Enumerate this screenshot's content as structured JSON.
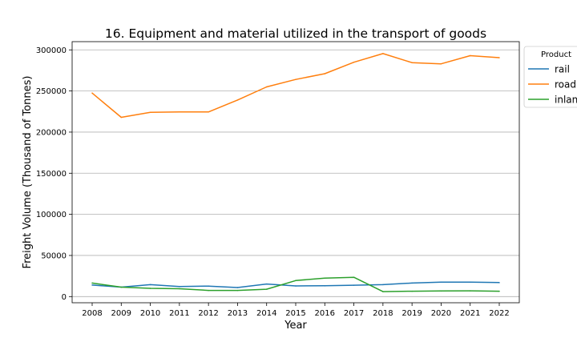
{
  "chart_data": {
    "type": "line",
    "title": "16. Equipment and material utilized in the transport of goods",
    "xlabel": "Year",
    "ylabel": "Freight Volume (Thousand of Tonnes)",
    "x": [
      2008,
      2009,
      2010,
      2011,
      2012,
      2013,
      2014,
      2015,
      2016,
      2017,
      2018,
      2019,
      2020,
      2021,
      2022
    ],
    "ylim": [
      -7500,
      310000
    ],
    "yticks": [
      0,
      50000,
      100000,
      150000,
      200000,
      250000,
      300000
    ],
    "grid": "horizontal",
    "legend": {
      "title": "Product",
      "position": "outside-top-right"
    },
    "series": [
      {
        "name": "rail",
        "color": "#1f77b4",
        "values": [
          14000,
          11500,
          14500,
          12300,
          12800,
          11000,
          15300,
          13000,
          13100,
          13800,
          14500,
          16500,
          17600,
          17500,
          17000
        ]
      },
      {
        "name": "road",
        "color": "#ff7f0e",
        "values": [
          247500,
          218000,
          224000,
          224500,
          224500,
          239000,
          255000,
          264000,
          271000,
          285000,
          295500,
          284500,
          283000,
          293000,
          290500
        ]
      },
      {
        "name": "inland",
        "color": "#2ca02c",
        "values": [
          16500,
          11500,
          10000,
          9500,
          7500,
          7500,
          9000,
          19500,
          22500,
          23500,
          6000,
          6500,
          6800,
          7000,
          6500
        ]
      }
    ]
  }
}
